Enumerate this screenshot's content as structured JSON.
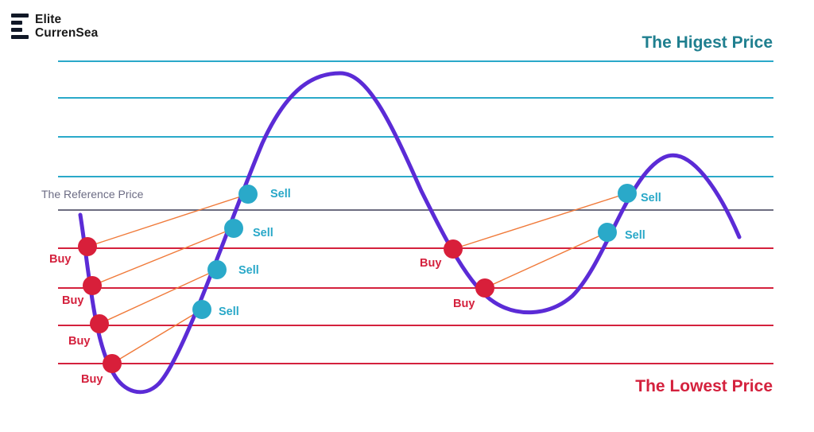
{
  "logo": {
    "line1": "Elite",
    "line2": "CurrenSea",
    "icon": "stacked-bars-logo-icon"
  },
  "labels": {
    "highest_price": "The Higest Price",
    "lowest_price": "The Lowest Price",
    "reference_price": "The Reference Price"
  },
  "markers": {
    "buy": [
      "Buy",
      "Buy",
      "Buy",
      "Buy",
      "Buy",
      "Buy"
    ],
    "sell": [
      "Sell",
      "Sell",
      "Sell",
      "Sell",
      "Sell",
      "Sell"
    ]
  },
  "colors": {
    "upper_lines": "#2aa9c9",
    "reference_line": "#6d6d80",
    "lower_lines": "#d4213d",
    "price_curve": "#5b2bd6",
    "buy_dot": "#d81f3a",
    "sell_dot": "#2aa9c9",
    "connector": "#f07a3a",
    "highest_text": "#1f7f8f",
    "lowest_text": "#d4213d"
  }
}
